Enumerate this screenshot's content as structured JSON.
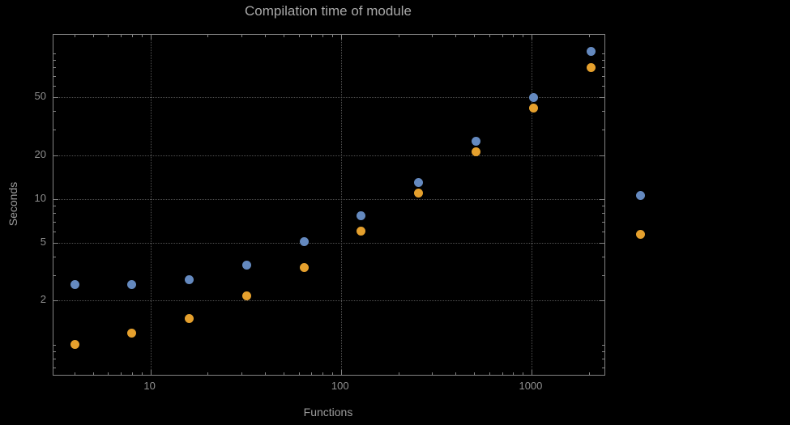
{
  "title": "Compilation time of module",
  "colors": {
    "background": "#000000",
    "frame": "#838383",
    "grid": "#515151",
    "text": "#9c9c9c",
    "tick_text": "#8f8f8f",
    "series_blue": "#6489bf",
    "series_orange": "#e5a02d"
  },
  "chart_data": {
    "type": "scatter",
    "title": "Compilation time of module",
    "xlabel": "Functions",
    "ylabel": "Seconds",
    "xscale": "log",
    "yscale": "log",
    "grid": true,
    "xlim": [
      3.1,
      2415
    ],
    "ylim": [
      0.62,
      134
    ],
    "xticks": [
      10,
      100,
      1000
    ],
    "xtick_labels": [
      "10",
      "100",
      "1000"
    ],
    "yticks": [
      2,
      5,
      10,
      20,
      50
    ],
    "ytick_labels": [
      "2",
      "5",
      "10",
      "20",
      "50"
    ],
    "x": [
      4,
      8,
      16,
      32,
      64,
      128,
      256,
      512,
      1024,
      2048
    ],
    "series": [
      {
        "name": "series-1-blue",
        "color": "#6489bf",
        "values": [
          2.6,
          2.6,
          2.8,
          3.5,
          5.1,
          7.7,
          13,
          25,
          50,
          103
        ]
      },
      {
        "name": "series-2-orange",
        "color": "#e5a02d",
        "values": [
          1.0,
          1.2,
          1.5,
          2.15,
          3.4,
          6.0,
          11,
          21,
          42,
          80
        ]
      }
    ],
    "legend_position": "right"
  },
  "legend": {
    "markers": [
      {
        "name": "legend-marker-series-1",
        "color": "#6489bf"
      },
      {
        "name": "legend-marker-series-2",
        "color": "#e5a02d"
      }
    ]
  }
}
